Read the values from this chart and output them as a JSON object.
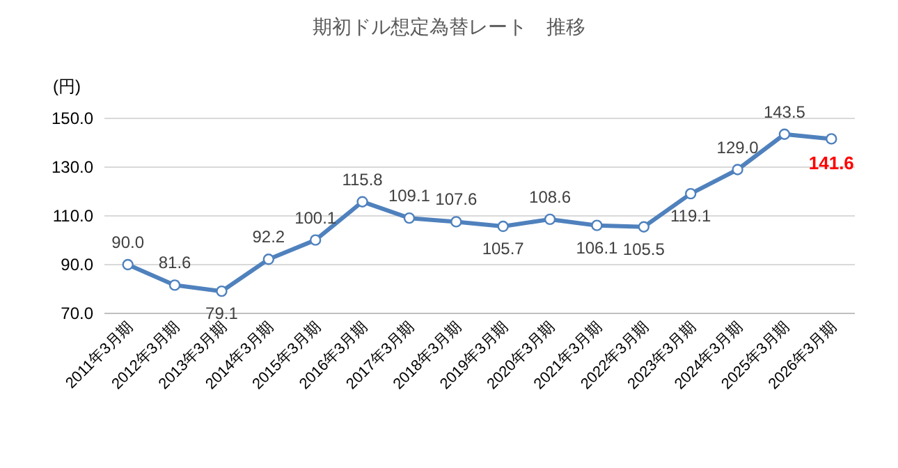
{
  "chart_data": {
    "type": "line",
    "title": "期初ドル想定為替レート　推移",
    "ylabel": "(円)",
    "categories": [
      "2011年3月期",
      "2012年3月期",
      "2013年3月期",
      "2014年3月期",
      "2015年3月期",
      "2016年3月期",
      "2017年3月期",
      "2018年3月期",
      "2019年3月期",
      "2020年3月期",
      "2021年3月期",
      "2022年3月期",
      "2023年3月期",
      "2024年3月期",
      "2025年3月期",
      "2026年3月期"
    ],
    "series": [
      {
        "color": "#4f81bd",
        "values": [
          90.0,
          81.6,
          79.1,
          92.2,
          100.1,
          115.8,
          109.1,
          107.6,
          105.7,
          108.6,
          106.1,
          105.5,
          119.1,
          129.0,
          143.5,
          141.6
        ],
        "value_labels": [
          "90.0",
          "81.6",
          "79.1",
          "92.2",
          "100.1",
          "115.8",
          "109.1",
          "107.6",
          "105.7",
          "108.6",
          "106.1",
          "105.5",
          "119.1",
          "129.0",
          "143.5",
          "141.6"
        ]
      }
    ],
    "ylim": [
      70,
      150
    ],
    "yticks": [
      {
        "value": 70,
        "label": "70.0"
      },
      {
        "value": 90,
        "label": "90.0"
      },
      {
        "value": 110,
        "label": "110.0"
      },
      {
        "value": 130,
        "label": "130.0"
      },
      {
        "value": 150,
        "label": "150.0"
      }
    ],
    "grid": "y",
    "marker": "circle",
    "line_style": "solid"
  }
}
